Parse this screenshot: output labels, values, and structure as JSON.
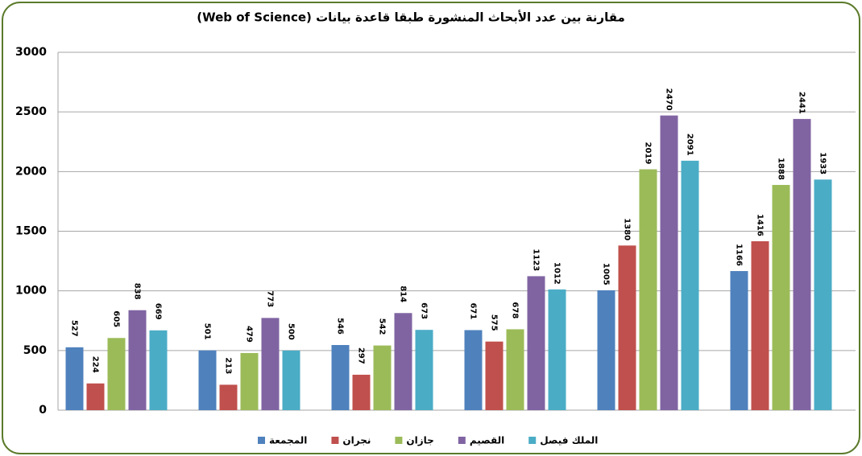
{
  "chart_data": {
    "type": "bar",
    "title": "مقارنة بين عدد الأبحاث المنشورة طبقا قاعدة بيانات (Web of Science)",
    "categories": [
      null,
      null,
      null,
      null,
      null,
      null
    ],
    "series": [
      {
        "name": "المجمعة",
        "color": "#4f81bd",
        "values": [
          527,
          501,
          546,
          671,
          1005,
          1166
        ]
      },
      {
        "name": "نجران",
        "color": "#c0504d",
        "values": [
          224,
          213,
          297,
          575,
          1380,
          1416
        ]
      },
      {
        "name": "جازان",
        "color": "#9bbb59",
        "values": [
          605,
          479,
          542,
          678,
          2019,
          1888
        ]
      },
      {
        "name": "القصيم",
        "color": "#8064a2",
        "values": [
          838,
          773,
          814,
          1123,
          2470,
          2441
        ]
      },
      {
        "name": "الملك فيصل",
        "color": "#4bacc6",
        "values": [
          669,
          500,
          673,
          1012,
          2091,
          1933
        ]
      }
    ],
    "ylim": [
      0,
      3000
    ],
    "yticks": [
      0,
      500,
      1000,
      1500,
      2000,
      2500,
      3000
    ],
    "grid": true,
    "legend": "bottom"
  }
}
